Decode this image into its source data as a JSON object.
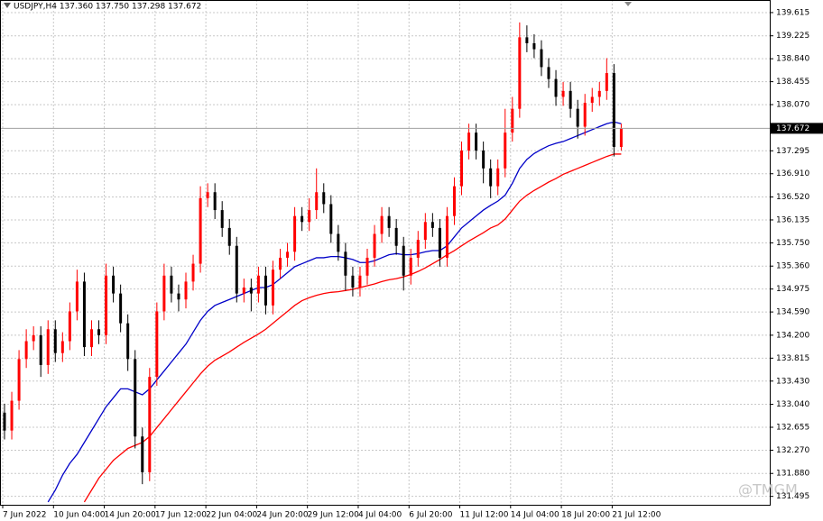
{
  "chart_data": {
    "type": "candlestick",
    "title": "USDJPY,H4 137.360 137.750 137.298 137.672",
    "watermark": "@TMGM",
    "categories": [
      "7 Jun 2022",
      null,
      null,
      null,
      null,
      null,
      null,
      "10 Jun 04:00",
      null,
      null,
      null,
      null,
      null,
      null,
      "14 Jun 20:00",
      null,
      null,
      null,
      null,
      null,
      null,
      "17 Jun 12:00",
      null,
      null,
      null,
      null,
      null,
      null,
      "22 Jun 04:00",
      null,
      null,
      null,
      null,
      null,
      null,
      "24 Jun 20:00",
      null,
      null,
      null,
      null,
      null,
      null,
      "29 Jun 12:00",
      null,
      null,
      null,
      null,
      null,
      null,
      "4 Jul 04:00",
      null,
      null,
      null,
      null,
      null,
      null,
      "6 Jul 20:00",
      null,
      null,
      null,
      null,
      null,
      null,
      "11 Jul 12:00",
      null,
      null,
      null,
      null,
      null,
      null,
      "14 Jul 04:00",
      null,
      null,
      null,
      null,
      null,
      null,
      "18 Jul 20:00",
      null,
      null,
      null,
      null,
      null,
      null,
      "21 Jul 12:00",
      null
    ],
    "open": [
      132.9,
      132.6,
      133.1,
      133.8,
      134.1,
      134.2,
      133.7,
      134.3,
      133.9,
      134.1,
      134.6,
      135.1,
      134.0,
      134.3,
      134.2,
      135.2,
      134.9,
      134.4,
      133.8,
      132.5,
      131.9,
      133.5,
      134.6,
      135.2,
      134.9,
      134.8,
      135.1,
      135.4,
      136.5,
      136.6,
      136.3,
      136.0,
      135.7,
      134.9,
      135.0,
      134.9,
      135.2,
      134.7,
      135.3,
      135.5,
      135.6,
      136.2,
      136.1,
      136.3,
      136.6,
      136.4,
      135.9,
      135.6,
      135.2,
      135.0,
      135.2,
      135.5,
      135.9,
      136.2,
      136.0,
      135.7,
      135.2,
      135.5,
      135.8,
      136.1,
      136.0,
      135.5,
      136.2,
      136.7,
      137.3,
      137.6,
      137.3,
      137.0,
      136.7,
      137.0,
      137.6,
      138.0,
      139.2,
      139.1,
      139.0,
      138.7,
      138.5,
      138.2,
      138.3,
      138.0,
      137.7,
      138.1,
      138.2,
      138.3,
      138.6,
      137.36
    ],
    "high": [
      133.05,
      133.25,
      133.95,
      134.3,
      134.35,
      134.35,
      134.45,
      134.45,
      134.25,
      134.75,
      135.3,
      135.25,
      134.45,
      134.45,
      135.4,
      135.35,
      135.05,
      134.55,
      133.95,
      132.65,
      133.65,
      134.75,
      135.4,
      135.35,
      135.05,
      135.25,
      135.55,
      136.7,
      136.75,
      136.75,
      136.45,
      136.15,
      135.85,
      135.15,
      135.15,
      135.35,
      135.35,
      135.45,
      135.65,
      135.75,
      136.35,
      136.35,
      136.5,
      137.0,
      136.75,
      136.55,
      136.05,
      135.75,
      135.35,
      135.35,
      135.65,
      136.05,
      136.35,
      136.35,
      136.15,
      135.85,
      135.65,
      135.95,
      136.25,
      136.25,
      136.15,
      136.35,
      136.85,
      137.45,
      137.75,
      137.75,
      137.45,
      137.15,
      137.15,
      138.0,
      138.2,
      139.45,
      139.4,
      139.25,
      139.15,
      138.85,
      138.65,
      138.45,
      138.45,
      138.15,
      138.25,
      138.35,
      138.45,
      138.85,
      138.75,
      137.75
    ],
    "low": [
      132.45,
      132.45,
      132.95,
      133.65,
      133.95,
      133.5,
      133.55,
      133.75,
      133.75,
      133.95,
      134.45,
      133.85,
      133.85,
      134.05,
      134.05,
      134.75,
      134.25,
      133.6,
      132.3,
      131.7,
      131.75,
      133.35,
      134.45,
      134.75,
      134.6,
      134.65,
      134.95,
      135.25,
      136.35,
      136.15,
      135.85,
      135.55,
      134.75,
      134.75,
      134.6,
      134.75,
      134.55,
      134.55,
      135.15,
      135.35,
      135.45,
      135.95,
      135.95,
      136.15,
      136.25,
      135.75,
      135.45,
      134.95,
      134.85,
      134.85,
      135.05,
      135.35,
      135.75,
      135.85,
      135.55,
      134.95,
      135.05,
      135.35,
      135.65,
      135.85,
      135.35,
      135.35,
      136.05,
      136.55,
      137.15,
      137.15,
      136.75,
      136.5,
      136.55,
      136.85,
      137.45,
      137.85,
      138.95,
      138.85,
      138.55,
      138.35,
      138.05,
      138.05,
      137.85,
      137.5,
      137.55,
      137.95,
      138.05,
      138.15,
      137.2,
      137.298
    ],
    "close": [
      132.6,
      133.1,
      133.8,
      134.1,
      134.2,
      133.7,
      134.3,
      133.9,
      134.1,
      134.6,
      135.1,
      134.0,
      134.3,
      134.2,
      135.2,
      134.9,
      134.4,
      133.8,
      132.5,
      131.9,
      133.5,
      134.6,
      135.2,
      134.9,
      134.8,
      135.1,
      135.4,
      136.5,
      136.6,
      136.3,
      136.0,
      135.7,
      134.9,
      135.0,
      134.9,
      135.2,
      134.7,
      135.3,
      135.5,
      135.6,
      136.2,
      136.1,
      136.3,
      136.6,
      136.4,
      135.9,
      135.6,
      135.2,
      135.0,
      135.2,
      135.5,
      135.9,
      136.2,
      136.0,
      135.7,
      135.2,
      135.5,
      135.8,
      136.1,
      136.0,
      135.5,
      136.2,
      136.7,
      137.3,
      137.6,
      137.3,
      137.0,
      136.7,
      137.0,
      137.6,
      138.0,
      139.2,
      139.1,
      139.0,
      138.7,
      138.5,
      138.2,
      138.3,
      138.0,
      137.7,
      138.1,
      138.2,
      138.3,
      138.6,
      137.36,
      137.672
    ],
    "up_color": "#ff0000",
    "down_color": "#000000",
    "lines": [
      {
        "color": "#0000c8",
        "values": [
          null,
          null,
          null,
          null,
          null,
          null,
          131.4,
          131.6,
          131.85,
          132.05,
          132.2,
          132.4,
          132.6,
          132.8,
          133.0,
          133.15,
          133.3,
          133.3,
          133.25,
          133.2,
          133.3,
          133.45,
          133.6,
          133.75,
          133.9,
          134.05,
          134.25,
          134.45,
          134.6,
          134.7,
          134.75,
          134.8,
          134.85,
          134.9,
          134.95,
          135.0,
          135.0,
          135.05,
          135.15,
          135.25,
          135.35,
          135.4,
          135.45,
          135.5,
          135.5,
          135.52,
          135.52,
          135.5,
          135.47,
          135.42,
          135.42,
          135.45,
          135.5,
          135.55,
          135.57,
          135.55,
          135.55,
          135.57,
          135.6,
          135.62,
          135.62,
          135.7,
          135.85,
          136.0,
          136.1,
          136.2,
          136.3,
          136.38,
          136.45,
          136.55,
          136.75,
          137.0,
          137.15,
          137.25,
          137.32,
          137.38,
          137.42,
          137.45,
          137.5,
          137.55,
          137.6,
          137.65,
          137.7,
          137.75,
          137.78,
          137.75
        ]
      },
      {
        "color": "#ff0000",
        "values": [
          null,
          null,
          null,
          null,
          null,
          null,
          null,
          null,
          null,
          null,
          null,
          131.4,
          131.6,
          131.8,
          131.95,
          132.1,
          132.2,
          132.3,
          132.35,
          132.4,
          132.5,
          132.65,
          132.8,
          132.95,
          133.1,
          133.25,
          133.4,
          133.55,
          133.68,
          133.78,
          133.85,
          133.92,
          134.0,
          134.08,
          134.15,
          134.22,
          134.3,
          134.4,
          134.5,
          134.6,
          134.7,
          134.78,
          134.83,
          134.87,
          134.9,
          134.92,
          134.93,
          134.95,
          134.97,
          135.0,
          135.03,
          135.06,
          135.1,
          135.13,
          135.15,
          135.18,
          135.22,
          135.27,
          135.33,
          135.4,
          135.47,
          135.55,
          135.62,
          135.7,
          135.78,
          135.85,
          135.92,
          136.0,
          136.05,
          136.15,
          136.3,
          136.45,
          136.55,
          136.63,
          136.7,
          136.77,
          136.83,
          136.9,
          136.95,
          137.0,
          137.05,
          137.1,
          137.15,
          137.2,
          137.24,
          137.24
        ]
      }
    ],
    "last_price": 137.672,
    "ylim": [
      131.354,
      139.826
    ],
    "yticks": [
      139.615,
      139.225,
      {
        "value": 138.84,
        "label": "138.840"
      },
      138.455,
      {
        "value": 138.07,
        "label": "138.070"
      },
      137.295,
      {
        "value": 136.91,
        "label": "136.910"
      },
      {
        "value": 136.52,
        "label": "136.520"
      },
      136.135,
      {
        "value": 135.75,
        "label": "135.750"
      },
      {
        "value": 135.36,
        "label": "135.360"
      },
      134.975,
      {
        "value": 134.59,
        "label": "134.590"
      },
      {
        "value": 134.2,
        "label": "134.200"
      },
      133.815,
      {
        "value": 133.43,
        "label": "133.430"
      },
      {
        "value": 133.04,
        "label": "133.040"
      },
      132.655,
      {
        "value": 132.27,
        "label": "132.270"
      },
      {
        "value": 131.88,
        "label": "131.880"
      },
      131.495
    ],
    "grid": true
  }
}
